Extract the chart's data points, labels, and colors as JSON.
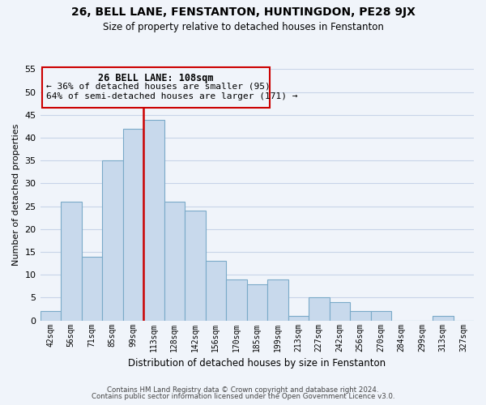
{
  "title": "26, BELL LANE, FENSTANTON, HUNTINGDON, PE28 9JX",
  "subtitle": "Size of property relative to detached houses in Fenstanton",
  "xlabel": "Distribution of detached houses by size in Fenstanton",
  "ylabel": "Number of detached properties",
  "bin_labels": [
    "42sqm",
    "56sqm",
    "71sqm",
    "85sqm",
    "99sqm",
    "113sqm",
    "128sqm",
    "142sqm",
    "156sqm",
    "170sqm",
    "185sqm",
    "199sqm",
    "213sqm",
    "227sqm",
    "242sqm",
    "256sqm",
    "270sqm",
    "284sqm",
    "299sqm",
    "313sqm",
    "327sqm"
  ],
  "bar_values": [
    2,
    26,
    14,
    35,
    42,
    44,
    26,
    24,
    13,
    9,
    8,
    9,
    1,
    5,
    4,
    2,
    2,
    0,
    0,
    1,
    0
  ],
  "bar_color": "#c8d9ec",
  "bar_edge_color": "#7aaac8",
  "vline_color": "#cc0000",
  "ylim": [
    0,
    55
  ],
  "yticks": [
    0,
    5,
    10,
    15,
    20,
    25,
    30,
    35,
    40,
    45,
    50,
    55
  ],
  "annotation_title": "26 BELL LANE: 108sqm",
  "annotation_line1": "← 36% of detached houses are smaller (95)",
  "annotation_line2": "64% of semi-detached houses are larger (171) →",
  "footnote1": "Contains HM Land Registry data © Crown copyright and database right 2024.",
  "footnote2": "Contains public sector information licensed under the Open Government Licence v3.0.",
  "background_color": "#f0f4fa",
  "grid_color": "#c8d4e8"
}
